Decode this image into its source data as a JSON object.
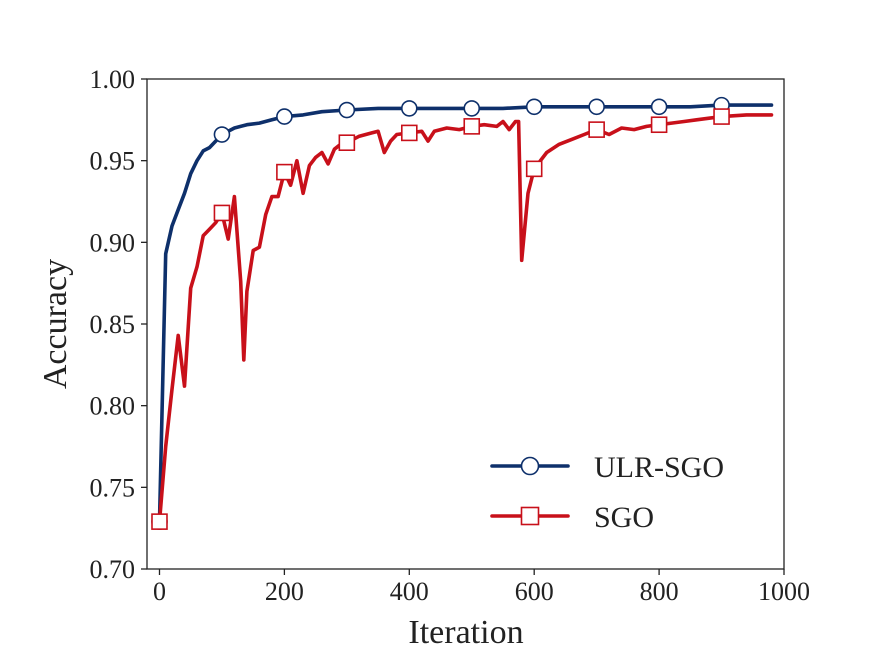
{
  "chart_data": {
    "type": "line",
    "title": "",
    "xlabel": "Iteration",
    "ylabel": "Accuracy",
    "xlim": [
      -20,
      1000
    ],
    "ylim": [
      0.7,
      1.0
    ],
    "xticks": [
      0,
      200,
      400,
      600,
      800,
      1000
    ],
    "xtick_labels": [
      "0",
      "200",
      "400",
      "600",
      "800",
      "1000"
    ],
    "yticks": [
      0.7,
      0.75,
      0.8,
      0.85,
      0.9,
      0.95,
      1.0
    ],
    "ytick_labels": [
      "0.70",
      "0.75",
      "0.80",
      "0.85",
      "0.90",
      "0.95",
      "1.00"
    ],
    "grid": false,
    "legend_position": "lower-right",
    "series": [
      {
        "name": "ULR-SGO",
        "color": "#0e306b",
        "marker": "circle",
        "x": [
          0,
          10,
          20,
          30,
          40,
          50,
          60,
          70,
          80,
          90,
          100,
          120,
          140,
          160,
          180,
          200,
          230,
          260,
          300,
          350,
          400,
          450,
          500,
          550,
          600,
          650,
          700,
          750,
          800,
          850,
          900,
          950,
          980
        ],
        "y": [
          0.729,
          0.893,
          0.91,
          0.92,
          0.93,
          0.942,
          0.95,
          0.956,
          0.958,
          0.962,
          0.966,
          0.97,
          0.972,
          0.973,
          0.975,
          0.977,
          0.978,
          0.98,
          0.981,
          0.982,
          0.982,
          0.982,
          0.982,
          0.982,
          0.983,
          0.983,
          0.983,
          0.983,
          0.983,
          0.983,
          0.984,
          0.984,
          0.984
        ],
        "marker_x": [
          0,
          100,
          200,
          300,
          400,
          500,
          600,
          700,
          800,
          900
        ],
        "marker_y": [
          0.729,
          0.966,
          0.977,
          0.981,
          0.982,
          0.982,
          0.983,
          0.983,
          0.983,
          0.984
        ]
      },
      {
        "name": "SGO",
        "color": "#c8101a",
        "marker": "square",
        "x": [
          0,
          10,
          20,
          30,
          40,
          50,
          60,
          70,
          80,
          90,
          100,
          110,
          120,
          130,
          135,
          140,
          150,
          160,
          170,
          180,
          190,
          200,
          210,
          220,
          230,
          240,
          250,
          260,
          270,
          280,
          290,
          300,
          320,
          340,
          350,
          360,
          370,
          380,
          400,
          420,
          430,
          440,
          460,
          480,
          500,
          520,
          540,
          550,
          560,
          570,
          575,
          580,
          590,
          600,
          620,
          640,
          660,
          680,
          700,
          720,
          740,
          760,
          780,
          800,
          820,
          840,
          860,
          880,
          900,
          940,
          980
        ],
        "y": [
          0.729,
          0.775,
          0.81,
          0.843,
          0.812,
          0.872,
          0.885,
          0.904,
          0.908,
          0.912,
          0.918,
          0.902,
          0.928,
          0.876,
          0.828,
          0.87,
          0.895,
          0.897,
          0.917,
          0.928,
          0.928,
          0.943,
          0.935,
          0.95,
          0.93,
          0.947,
          0.952,
          0.955,
          0.948,
          0.957,
          0.96,
          0.961,
          0.965,
          0.967,
          0.968,
          0.955,
          0.962,
          0.966,
          0.967,
          0.968,
          0.962,
          0.968,
          0.97,
          0.969,
          0.971,
          0.972,
          0.971,
          0.974,
          0.969,
          0.974,
          0.974,
          0.889,
          0.93,
          0.945,
          0.955,
          0.96,
          0.963,
          0.966,
          0.969,
          0.966,
          0.97,
          0.969,
          0.971,
          0.972,
          0.973,
          0.974,
          0.975,
          0.976,
          0.977,
          0.978,
          0.978
        ],
        "marker_x": [
          0,
          100,
          200,
          300,
          400,
          500,
          600,
          700,
          800,
          900
        ],
        "marker_y": [
          0.729,
          0.918,
          0.943,
          0.961,
          0.967,
          0.971,
          0.945,
          0.969,
          0.972,
          0.977
        ]
      }
    ]
  }
}
